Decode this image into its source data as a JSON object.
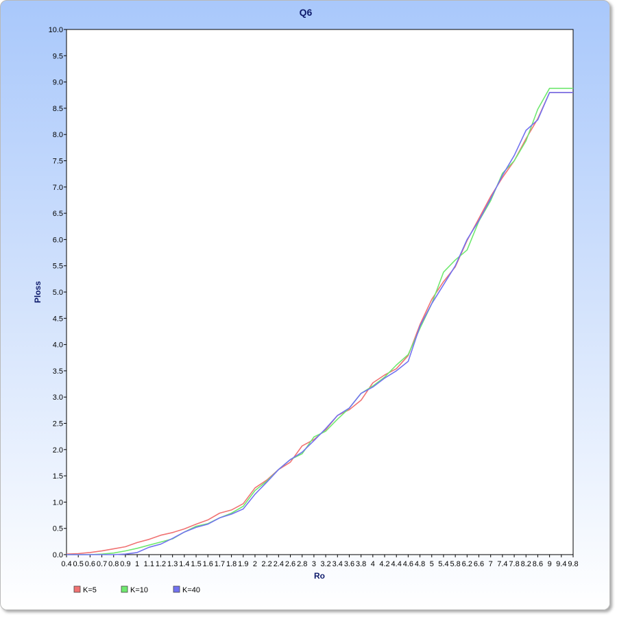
{
  "chart_data": {
    "type": "line",
    "title": "Q6",
    "xlabel": "Ro",
    "ylabel": "Ploss",
    "ylim": [
      0,
      10
    ],
    "yticks": [
      "0.0",
      "0.5",
      "1.0",
      "1.5",
      "2.0",
      "2.5",
      "3.0",
      "3.5",
      "4.0",
      "4.5",
      "5.0",
      "5.5",
      "6.0",
      "6.5",
      "7.0",
      "7.5",
      "8.0",
      "8.5",
      "9.0",
      "9.5",
      "10.0"
    ],
    "x": [
      "0.4",
      "0.5",
      "0.6",
      "0.7",
      "0.8",
      "0.9",
      "1",
      "1.1",
      "1.2",
      "1.3",
      "1.4",
      "1.5",
      "1.6",
      "1.7",
      "1.8",
      "1.9",
      "2",
      "2.2",
      "2.4",
      "2.6",
      "2.8",
      "3",
      "3.2",
      "3.4",
      "3.6",
      "3.8",
      "4",
      "4.2",
      "4.4",
      "4.6",
      "4.8",
      "5",
      "5.4",
      "5.8",
      "6.2",
      "6.6",
      "7",
      "7.4",
      "7.8",
      "8.2",
      "8.6",
      "9",
      "9.4",
      "9.8"
    ],
    "x_tick_labels": [
      "0.4",
      "0.5",
      "0.6",
      "0.7",
      "0.8",
      "0.9",
      "1",
      "1.1",
      "1.2",
      "1.3",
      "1.4",
      "1.5",
      "1.6",
      "1.7",
      "1.8",
      "1.9",
      "2",
      "2.2",
      "2.4",
      "2.6",
      "2.8",
      "3",
      "3.2",
      "3.4",
      "3.6",
      "3.8",
      "4",
      "4.2",
      "4.4",
      "4.6",
      "4.8",
      "5",
      "5.4",
      "5.8",
      "6.2",
      "6.6",
      "7",
      "7.4",
      "7.8",
      "8.2",
      "8.6",
      "9",
      "9.4",
      "9.8"
    ],
    "legend_position": "bottom-left",
    "grid": false,
    "series": [
      {
        "name": "K=5",
        "color": "#f07272",
        "values": [
          0.01,
          0.02,
          0.04,
          0.07,
          0.11,
          0.15,
          0.23,
          0.29,
          0.37,
          0.42,
          0.49,
          0.58,
          0.66,
          0.79,
          0.85,
          0.97,
          1.27,
          1.42,
          1.62,
          1.76,
          2.07,
          2.19,
          2.38,
          2.65,
          2.76,
          2.94,
          3.27,
          3.42,
          3.54,
          3.79,
          4.38,
          4.86,
          5.2,
          5.48,
          5.98,
          6.4,
          6.82,
          7.18,
          7.5,
          7.92,
          8.3,
          8.8,
          8.8,
          8.8
        ]
      },
      {
        "name": "K=10",
        "color": "#6fe86f",
        "values": [
          0.0,
          0.0,
          0.0,
          0.01,
          0.03,
          0.07,
          0.12,
          0.18,
          0.24,
          0.3,
          0.43,
          0.54,
          0.59,
          0.7,
          0.79,
          0.92,
          1.22,
          1.4,
          1.62,
          1.81,
          1.92,
          2.24,
          2.35,
          2.58,
          2.79,
          3.07,
          3.21,
          3.38,
          3.61,
          3.81,
          4.31,
          4.78,
          5.38,
          5.61,
          5.8,
          6.35,
          6.74,
          7.26,
          7.5,
          7.88,
          8.48,
          8.88,
          8.88,
          8.88
        ]
      },
      {
        "name": "K=40",
        "color": "#7272f0",
        "values": [
          0.0,
          0.0,
          0.0,
          0.0,
          0.0,
          0.01,
          0.04,
          0.14,
          0.2,
          0.31,
          0.43,
          0.52,
          0.58,
          0.7,
          0.77,
          0.87,
          1.15,
          1.38,
          1.62,
          1.81,
          1.95,
          2.17,
          2.4,
          2.65,
          2.79,
          3.07,
          3.19,
          3.36,
          3.5,
          3.68,
          4.35,
          4.78,
          5.14,
          5.5,
          6.0,
          6.36,
          6.78,
          7.22,
          7.6,
          8.08,
          8.28,
          8.8,
          8.8,
          8.8
        ]
      }
    ]
  }
}
